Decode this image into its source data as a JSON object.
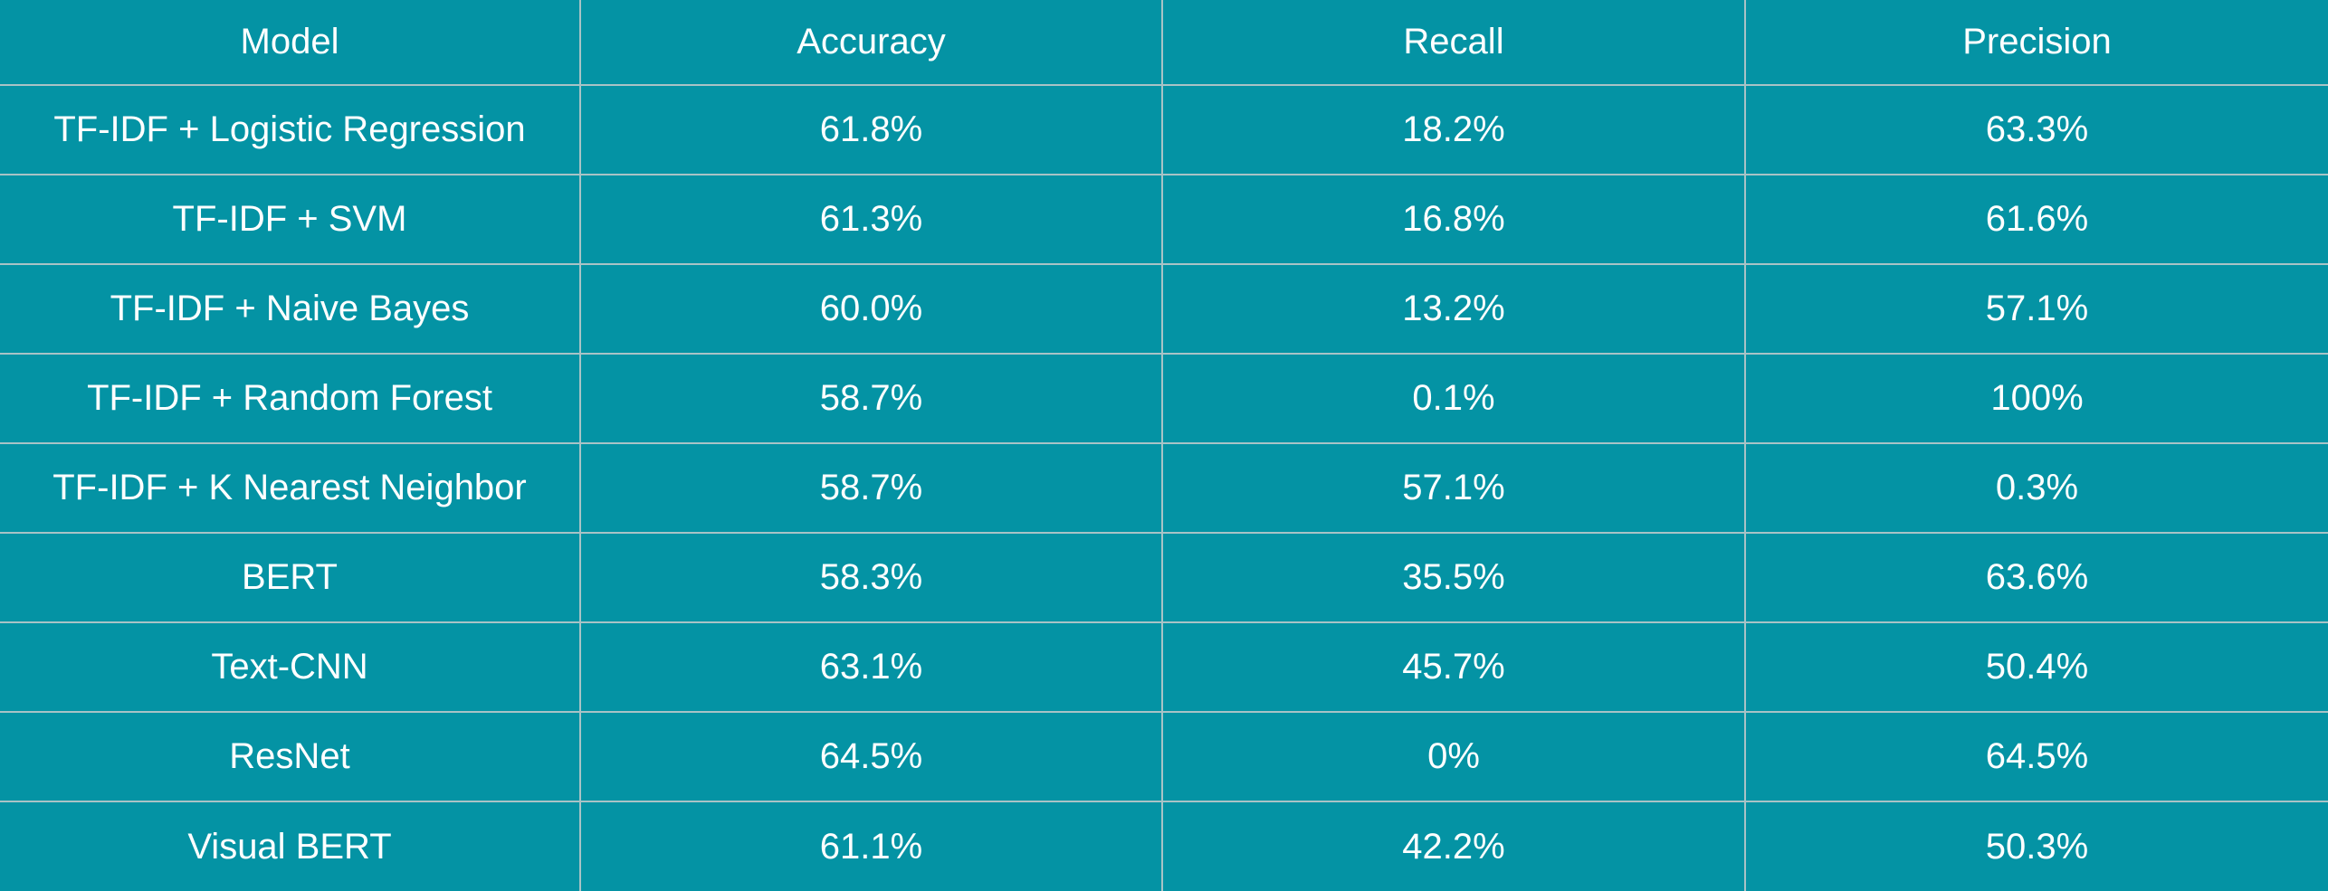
{
  "table": {
    "columns": [
      "Model",
      "Accuracy",
      "Recall",
      "Precision"
    ],
    "rows": [
      [
        "TF-IDF + Logistic Regression",
        "61.8%",
        "18.2%",
        "63.3%"
      ],
      [
        "TF-IDF + SVM",
        "61.3%",
        "16.8%",
        "61.6%"
      ],
      [
        "TF-IDF + Naive Bayes",
        "60.0%",
        "13.2%",
        "57.1%"
      ],
      [
        "TF-IDF + Random Forest",
        "58.7%",
        "0.1%",
        "100%"
      ],
      [
        "TF-IDF + K Nearest Neighbor",
        "58.7%",
        "57.1%",
        "0.3%"
      ],
      [
        "BERT",
        "58.3%",
        "35.5%",
        "63.6%"
      ],
      [
        "Text-CNN",
        "63.1%",
        "45.7%",
        "50.4%"
      ],
      [
        "ResNet",
        "64.5%",
        "0%",
        "64.5%"
      ],
      [
        "Visual BERT",
        "61.1%",
        "42.2%",
        "50.3%"
      ]
    ]
  },
  "colors": {
    "background": "#0493a4",
    "grid": "#a9c3c6",
    "text": "#ffffff"
  }
}
